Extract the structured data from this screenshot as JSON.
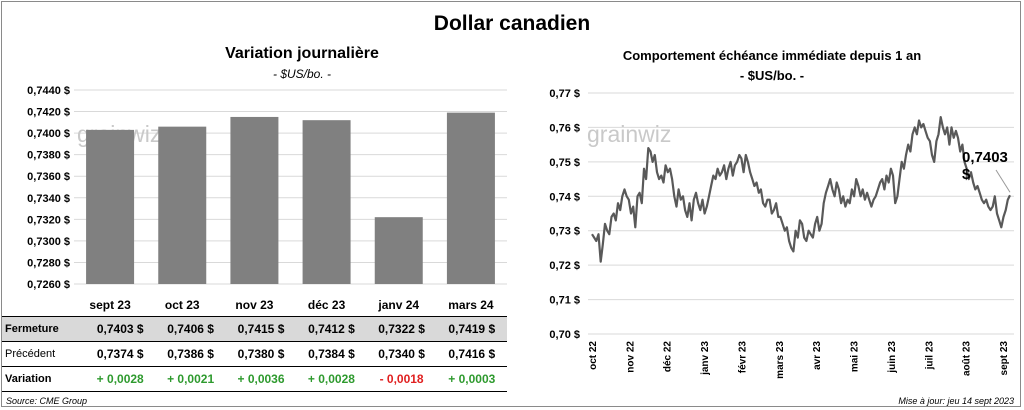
{
  "title": "Dollar canadien",
  "left": {
    "title": "Variation  journalière",
    "subtitle": "- $US/bo. -"
  },
  "right": {
    "title": "Comportement échéance immédiate depuis 1 an",
    "subtitle": "- $US/bo. -",
    "last_label": "0,7403 $"
  },
  "watermark": "grainwiz",
  "table": {
    "rows": [
      {
        "label": "Fermeture",
        "values": [
          "0,7403  $",
          "0,7406  $",
          "0,7415  $",
          "0,7412  $",
          "0,7322  $",
          "0,7419  $"
        ]
      },
      {
        "label": "Précédent",
        "values": [
          "0,7374  $",
          "0,7386  $",
          "0,7380  $",
          "0,7384  $",
          "0,7340  $",
          "0,7416  $"
        ]
      },
      {
        "label": "Variation",
        "values": [
          "+ 0,0028",
          "+ 0,0021",
          "+ 0,0036",
          "+ 0,0028",
          "- 0,0018",
          "+ 0,0003"
        ]
      }
    ]
  },
  "footer": {
    "source": "Source: CME Group",
    "update": "Mise à jour: jeu 14 sept 2023"
  },
  "colors": {
    "bar": "#808080",
    "line": "#595959",
    "positive": "#2e9a2e",
    "negative": "#e02020",
    "table_highlight": "#d9d9d9"
  },
  "chart_data": [
    {
      "type": "bar",
      "categories": [
        "sept 23",
        "oct 23",
        "nov 23",
        "déc 23",
        "janv 24",
        "mars 24"
      ],
      "values": [
        0.7403,
        0.7406,
        0.7415,
        0.7412,
        0.7322,
        0.7419
      ],
      "ylim": [
        0.726,
        0.744
      ],
      "yticks": [
        0.726,
        0.728,
        0.73,
        0.732,
        0.734,
        0.736,
        0.738,
        0.74,
        0.742,
        0.744
      ],
      "ytick_labels": [
        "0,7260 $",
        "0,7280 $",
        "0,7300 $",
        "0,7320 $",
        "0,7340 $",
        "0,7360 $",
        "0,7380 $",
        "0,7400 $",
        "0,7420 $",
        "0,7440 $"
      ],
      "grid": true
    },
    {
      "type": "line",
      "x_labels": [
        "oct 22",
        "nov 22",
        "déc 22",
        "janv 23",
        "févr 23",
        "mars 23",
        "avr 23",
        "mai 23",
        "juin 23",
        "juil 23",
        "août 23",
        "sept 23"
      ],
      "ylim": [
        0.7,
        0.77
      ],
      "yticks": [
        0.7,
        0.71,
        0.72,
        0.73,
        0.74,
        0.75,
        0.76,
        0.77
      ],
      "ytick_labels": [
        "0,70 $",
        "0,71 $",
        "0,72 $",
        "0,73 $",
        "0,74 $",
        "0,75 $",
        "0,76 $",
        "0,77 $"
      ],
      "grid": true,
      "series": [
        {
          "values": [
            0.729,
            0.728,
            0.727,
            0.729,
            0.721,
            0.726,
            0.732,
            0.73,
            0.729,
            0.734,
            0.735,
            0.733,
            0.738,
            0.736,
            0.74,
            0.742,
            0.74,
            0.739,
            0.735,
            0.737,
            0.731,
            0.74,
            0.741,
            0.738,
            0.748,
            0.745,
            0.754,
            0.753,
            0.75,
            0.752,
            0.747,
            0.745,
            0.746,
            0.744,
            0.749,
            0.747,
            0.748,
            0.745,
            0.74,
            0.737,
            0.742,
            0.739,
            0.74,
            0.736,
            0.734,
            0.738,
            0.733,
            0.739,
            0.741,
            0.738,
            0.736,
            0.739,
            0.735,
            0.737,
            0.74,
            0.743,
            0.746,
            0.745,
            0.748,
            0.746,
            0.747,
            0.749,
            0.745,
            0.748,
            0.75,
            0.746,
            0.749,
            0.75,
            0.752,
            0.751,
            0.747,
            0.752,
            0.75,
            0.747,
            0.745,
            0.743,
            0.744,
            0.741,
            0.742,
            0.738,
            0.737,
            0.739,
            0.739,
            0.735,
            0.736,
            0.738,
            0.734,
            0.734,
            0.732,
            0.73,
            0.731,
            0.727,
            0.725,
            0.724,
            0.73,
            0.728,
            0.733,
            0.732,
            0.728,
            0.727,
            0.73,
            0.729,
            0.728,
            0.732,
            0.734,
            0.73,
            0.732,
            0.738,
            0.741,
            0.743,
            0.745,
            0.742,
            0.74,
            0.744,
            0.742,
            0.738,
            0.74,
            0.737,
            0.739,
            0.738,
            0.742,
            0.74,
            0.745,
            0.743,
            0.74,
            0.742,
            0.739,
            0.741,
            0.739,
            0.737,
            0.739,
            0.74,
            0.742,
            0.744,
            0.745,
            0.742,
            0.746,
            0.744,
            0.748,
            0.746,
            0.738,
            0.74,
            0.745,
            0.75,
            0.748,
            0.752,
            0.755,
            0.753,
            0.758,
            0.76,
            0.758,
            0.762,
            0.76,
            0.761,
            0.759,
            0.757,
            0.756,
            0.752,
            0.75,
            0.756,
            0.758,
            0.763,
            0.76,
            0.758,
            0.76,
            0.755,
            0.76,
            0.757,
            0.759,
            0.757,
            0.753,
            0.755,
            0.75,
            0.748,
            0.745,
            0.747,
            0.744,
            0.742,
            0.743,
            0.741,
            0.739,
            0.738,
            0.739,
            0.737,
            0.736,
            0.737,
            0.74,
            0.735,
            0.733,
            0.731,
            0.734,
            0.736,
            0.739,
            0.7403
          ]
        }
      ]
    }
  ]
}
